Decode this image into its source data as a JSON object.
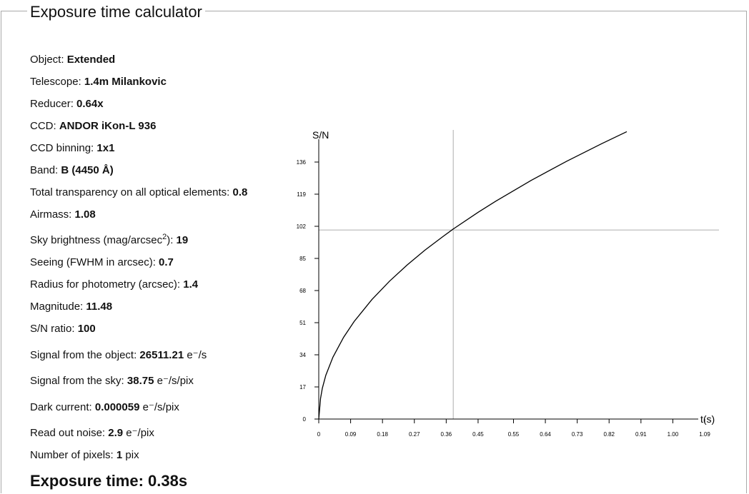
{
  "title": "Exposure time calculator",
  "params": [
    {
      "label": "Object: ",
      "value": "Extended",
      "unit": ""
    },
    {
      "label": "Telescope: ",
      "value": "1.4m Milankovic",
      "unit": ""
    },
    {
      "label": "Reducer: ",
      "value": "0.64x",
      "unit": ""
    },
    {
      "label": "CCD: ",
      "value": "ANDOR iKon-L 936",
      "unit": ""
    },
    {
      "label": "CCD binning: ",
      "value": "1x1",
      "unit": ""
    },
    {
      "label": "Band: ",
      "value": "B (4450 Å)",
      "unit": ""
    },
    {
      "label": "Total transparency on all optical elements: ",
      "value": "0.8",
      "unit": ""
    },
    {
      "label": "Airmass: ",
      "value": "1.08",
      "unit": ""
    },
    {
      "label": "Sky brightness (mag/arcsec",
      "sup": "2",
      "label_after": "): ",
      "value": "19",
      "unit": ""
    },
    {
      "label": "Seeing (FWHM in arcsec): ",
      "value": "0.7",
      "unit": ""
    },
    {
      "label": "Radius for photometry (arcsec): ",
      "value": "1.4",
      "unit": ""
    },
    {
      "label": "Magnitude: ",
      "value": "11.48",
      "unit": ""
    },
    {
      "label": "S/N ratio: ",
      "value": "100",
      "unit": ""
    },
    {
      "label": "Signal from the object: ",
      "value": "26511.21",
      "unit": " e⁻/s"
    },
    {
      "label": "Signal from the sky: ",
      "value": "38.75",
      "unit": " e⁻/s/pix"
    },
    {
      "label": "Dark current: ",
      "value": "0.000059",
      "unit": " e⁻/s/pix"
    },
    {
      "label": "Read out noise: ",
      "value": "2.9",
      "unit": " e⁻/pix"
    },
    {
      "label": "Number of pixels: ",
      "value": "1",
      "unit": " pix"
    }
  ],
  "exposure_time": "Exposure time: 0.38s",
  "chart_data": {
    "type": "line",
    "xlabel": "t(s)",
    "ylabel": "S/N",
    "xticks": [
      0,
      0.09,
      0.18,
      0.27,
      0.36,
      0.45,
      0.55,
      0.64,
      0.73,
      0.82,
      0.91,
      1.0,
      1.09
    ],
    "xtick_labels": [
      "0",
      "0.09",
      "0.18",
      "0.27",
      "0.36",
      "0.45",
      "0.55",
      "0.64",
      "0.73",
      "0.82",
      "0.91",
      "1.00",
      "1.09"
    ],
    "yticks": [
      0,
      17,
      34,
      51,
      68,
      85,
      102,
      119,
      136
    ],
    "xlim": [
      0,
      1.09
    ],
    "ylim": [
      0,
      153
    ],
    "series": [
      {
        "x": [
          0,
          0.005,
          0.01,
          0.02,
          0.04,
          0.07,
          0.1,
          0.15,
          0.2,
          0.25,
          0.3,
          0.35,
          0.38,
          0.45,
          0.5,
          0.6,
          0.7,
          0.8,
          0.87
        ],
        "y": [
          0,
          10.9,
          16.3,
          23.2,
          32.7,
          43.2,
          51.6,
          63.2,
          73.0,
          81.6,
          89.4,
          96.5,
          100.6,
          109.4,
          115.3,
          126.3,
          136.4,
          145.8,
          152.1
        ]
      }
    ],
    "crosshair": {
      "x": 0.38,
      "y": 100
    },
    "crosshair_color": "#c8c8c8",
    "line_color": "#000000"
  }
}
